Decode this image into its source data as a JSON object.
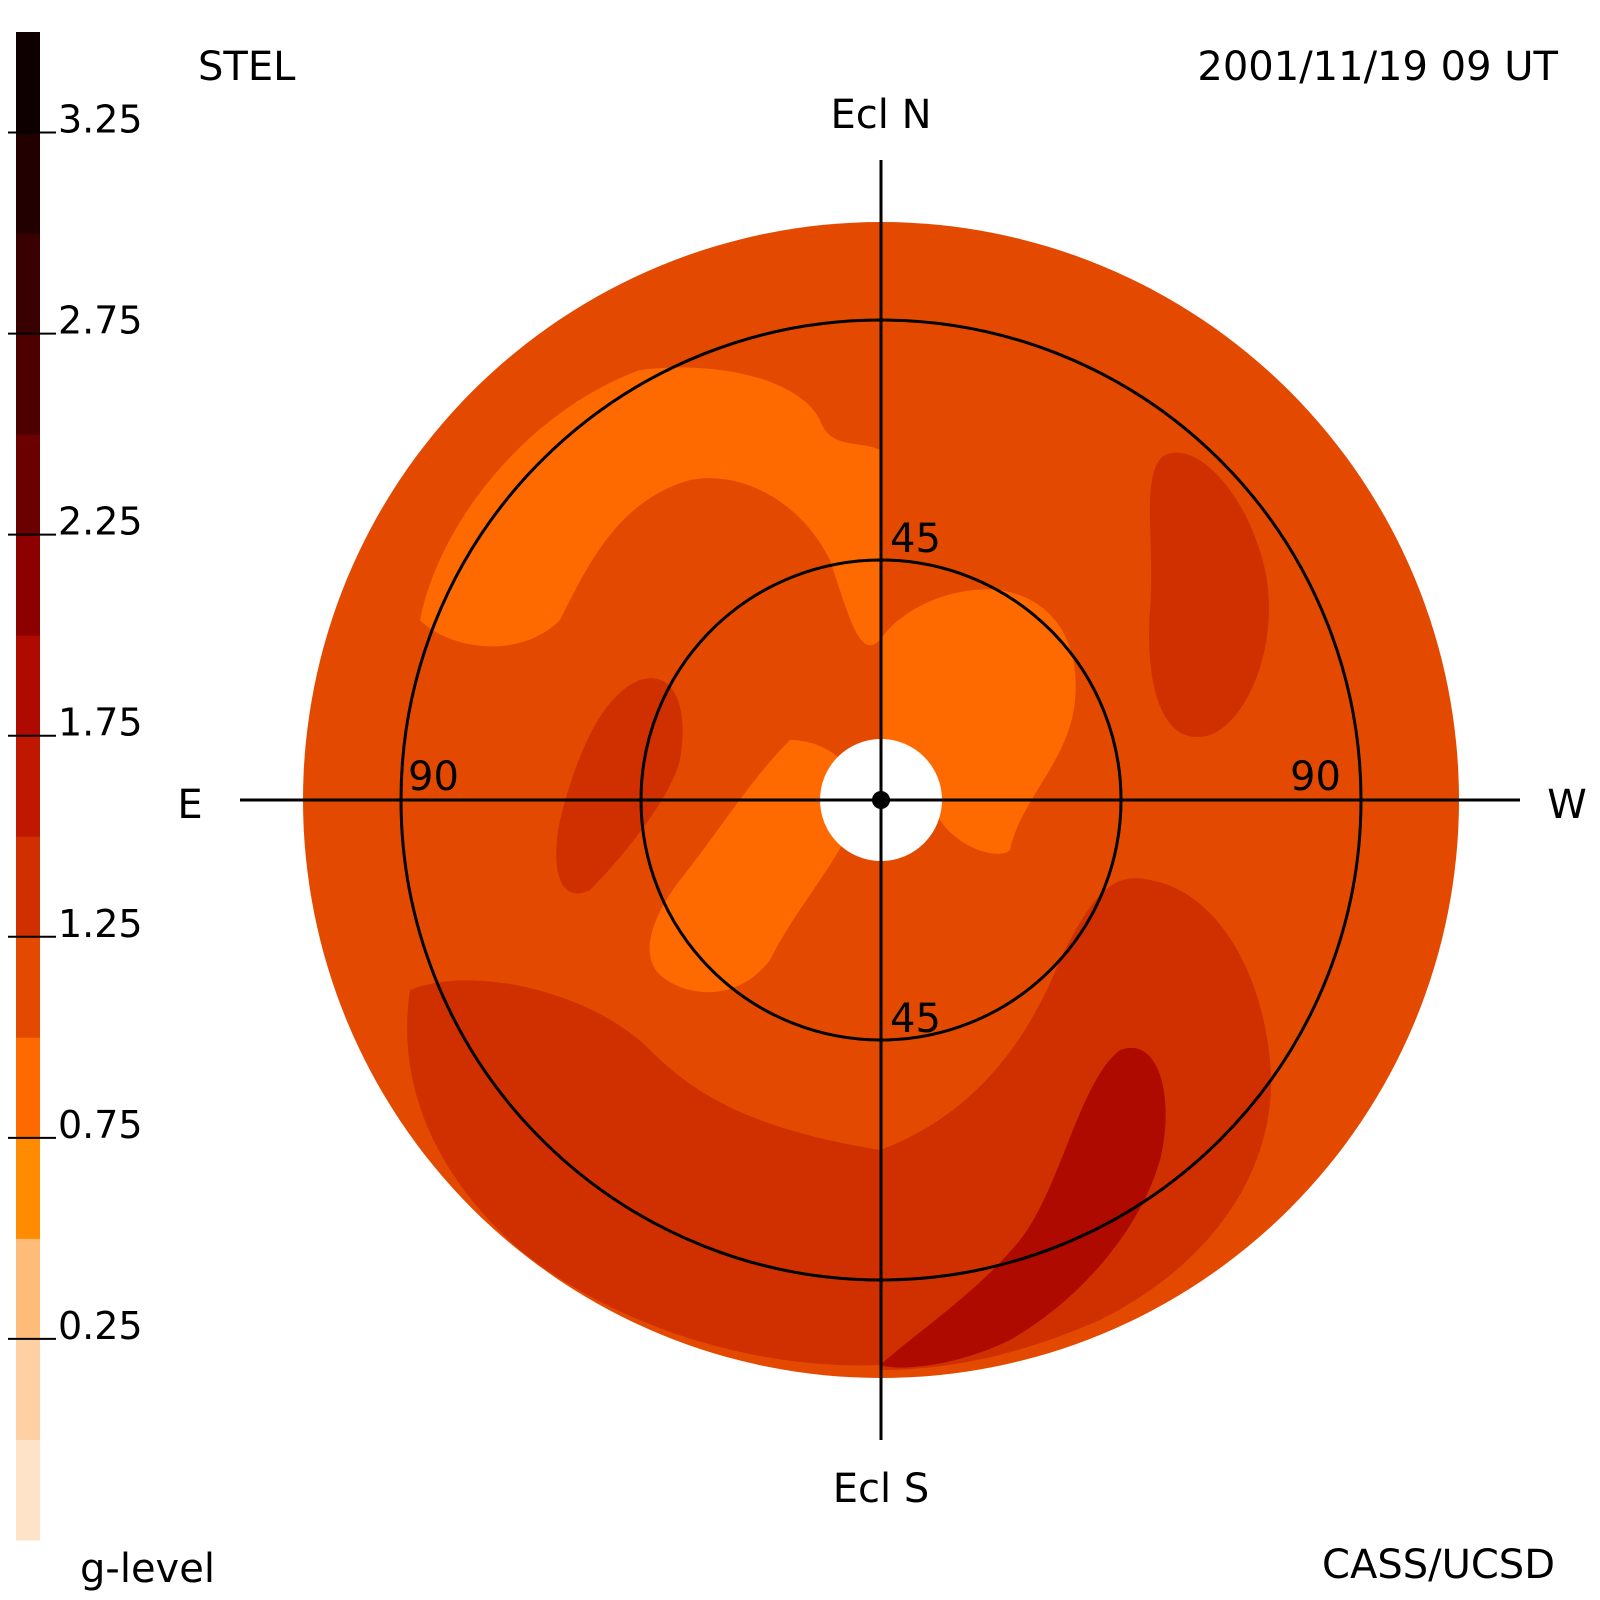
{
  "header": {
    "instrument": "STEL",
    "datetime": "2001/11/19 09 UT",
    "credit": "CASS/UCSD"
  },
  "colorbar": {
    "title": "g-level",
    "tick_labels": [
      "3.25",
      "2.75",
      "2.25",
      "1.75",
      "1.25",
      "0.75",
      "0.25"
    ],
    "tick_values": [
      3.25,
      2.75,
      2.25,
      1.75,
      1.25,
      0.75,
      0.25
    ],
    "range": [
      -0.25,
      3.5
    ],
    "steps": [
      {
        "from": -0.25,
        "to": 0.0,
        "color": "#ffe3c8"
      },
      {
        "from": 0.0,
        "to": 0.25,
        "color": "#ffd0a4"
      },
      {
        "from": 0.25,
        "to": 0.5,
        "color": "#ffbb78"
      },
      {
        "from": 0.5,
        "to": 0.75,
        "color": "#ff8c00"
      },
      {
        "from": 0.75,
        "to": 1.0,
        "color": "#ff6a00"
      },
      {
        "from": 1.0,
        "to": 1.25,
        "color": "#e34a00"
      },
      {
        "from": 1.25,
        "to": 1.5,
        "color": "#d03000"
      },
      {
        "from": 1.5,
        "to": 1.75,
        "color": "#c01800"
      },
      {
        "from": 1.75,
        "to": 2.0,
        "color": "#ae0a00"
      },
      {
        "from": 2.0,
        "to": 2.25,
        "color": "#8c0000"
      },
      {
        "from": 2.25,
        "to": 2.5,
        "color": "#6a0000"
      },
      {
        "from": 2.5,
        "to": 2.75,
        "color": "#4e0000"
      },
      {
        "from": 2.75,
        "to": 3.0,
        "color": "#380000"
      },
      {
        "from": 3.0,
        "to": 3.25,
        "color": "#220000"
      },
      {
        "from": 3.25,
        "to": 3.5,
        "color": "#0e0000"
      }
    ]
  },
  "sky_map": {
    "directions": {
      "north": "Ecl N",
      "south": "Ecl S",
      "east": "E",
      "west": "W"
    },
    "elongation_rings": [
      {
        "value": 45,
        "labels": [
          "45",
          "45"
        ]
      },
      {
        "value": 90,
        "labels": [
          "90",
          "90"
        ]
      }
    ],
    "background_color": "#e34a00",
    "colors": {
      "base": "#e34a00",
      "light": "#ff6a00",
      "dark": "#d03000",
      "darker": "#ae0a00",
      "sun_occulter": "#ffffff",
      "lines": "#000000"
    }
  }
}
